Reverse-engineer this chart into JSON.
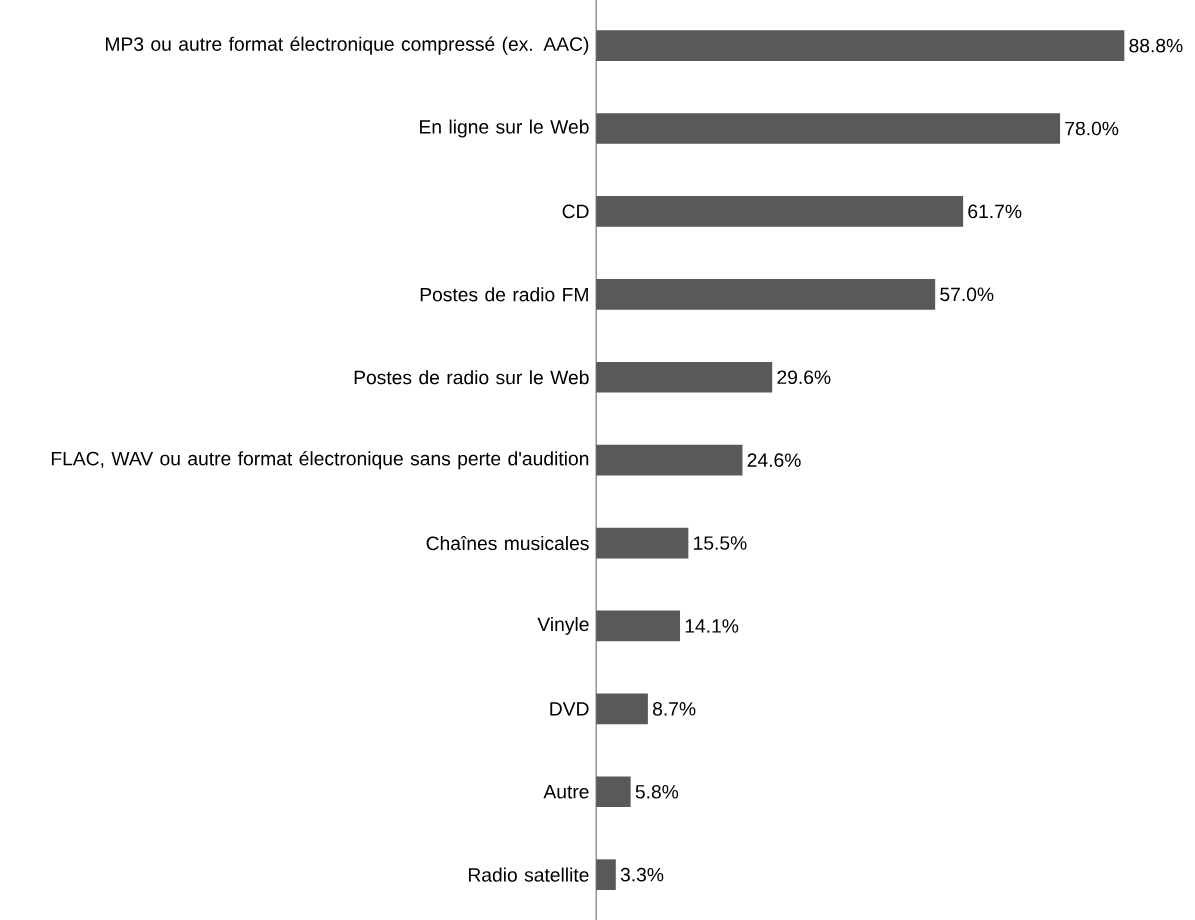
{
  "chart_data": {
    "type": "bar",
    "orientation": "horizontal",
    "data_labels": false,
    "categories": [
      "MP3 ou autre format électronique compressé (ex. AAC)",
      "En ligne sur le Web",
      "CD",
      "Postes de radio FM",
      "Postes de radio sur le Web",
      "FLAC, WAV ou autre format électronique sans perte d'audition",
      "Chaînes musicales",
      "Vinyle",
      "DVD",
      "Autre",
      "Radio satellite"
    ],
    "values": [
      88.8,
      78.0,
      61.7,
      57.0,
      29.6,
      24.6,
      15.5,
      14.1,
      8.7,
      5.8,
      3.3
    ],
    "value_labels": [
      "88.8%",
      "78.0%",
      "61.7%",
      "57.0%",
      "29.6%",
      "24.6%",
      "15.5%",
      "14.1%",
      "8.7%",
      "5.8%",
      "3.3%"
    ],
    "color": "#595959"
  }
}
